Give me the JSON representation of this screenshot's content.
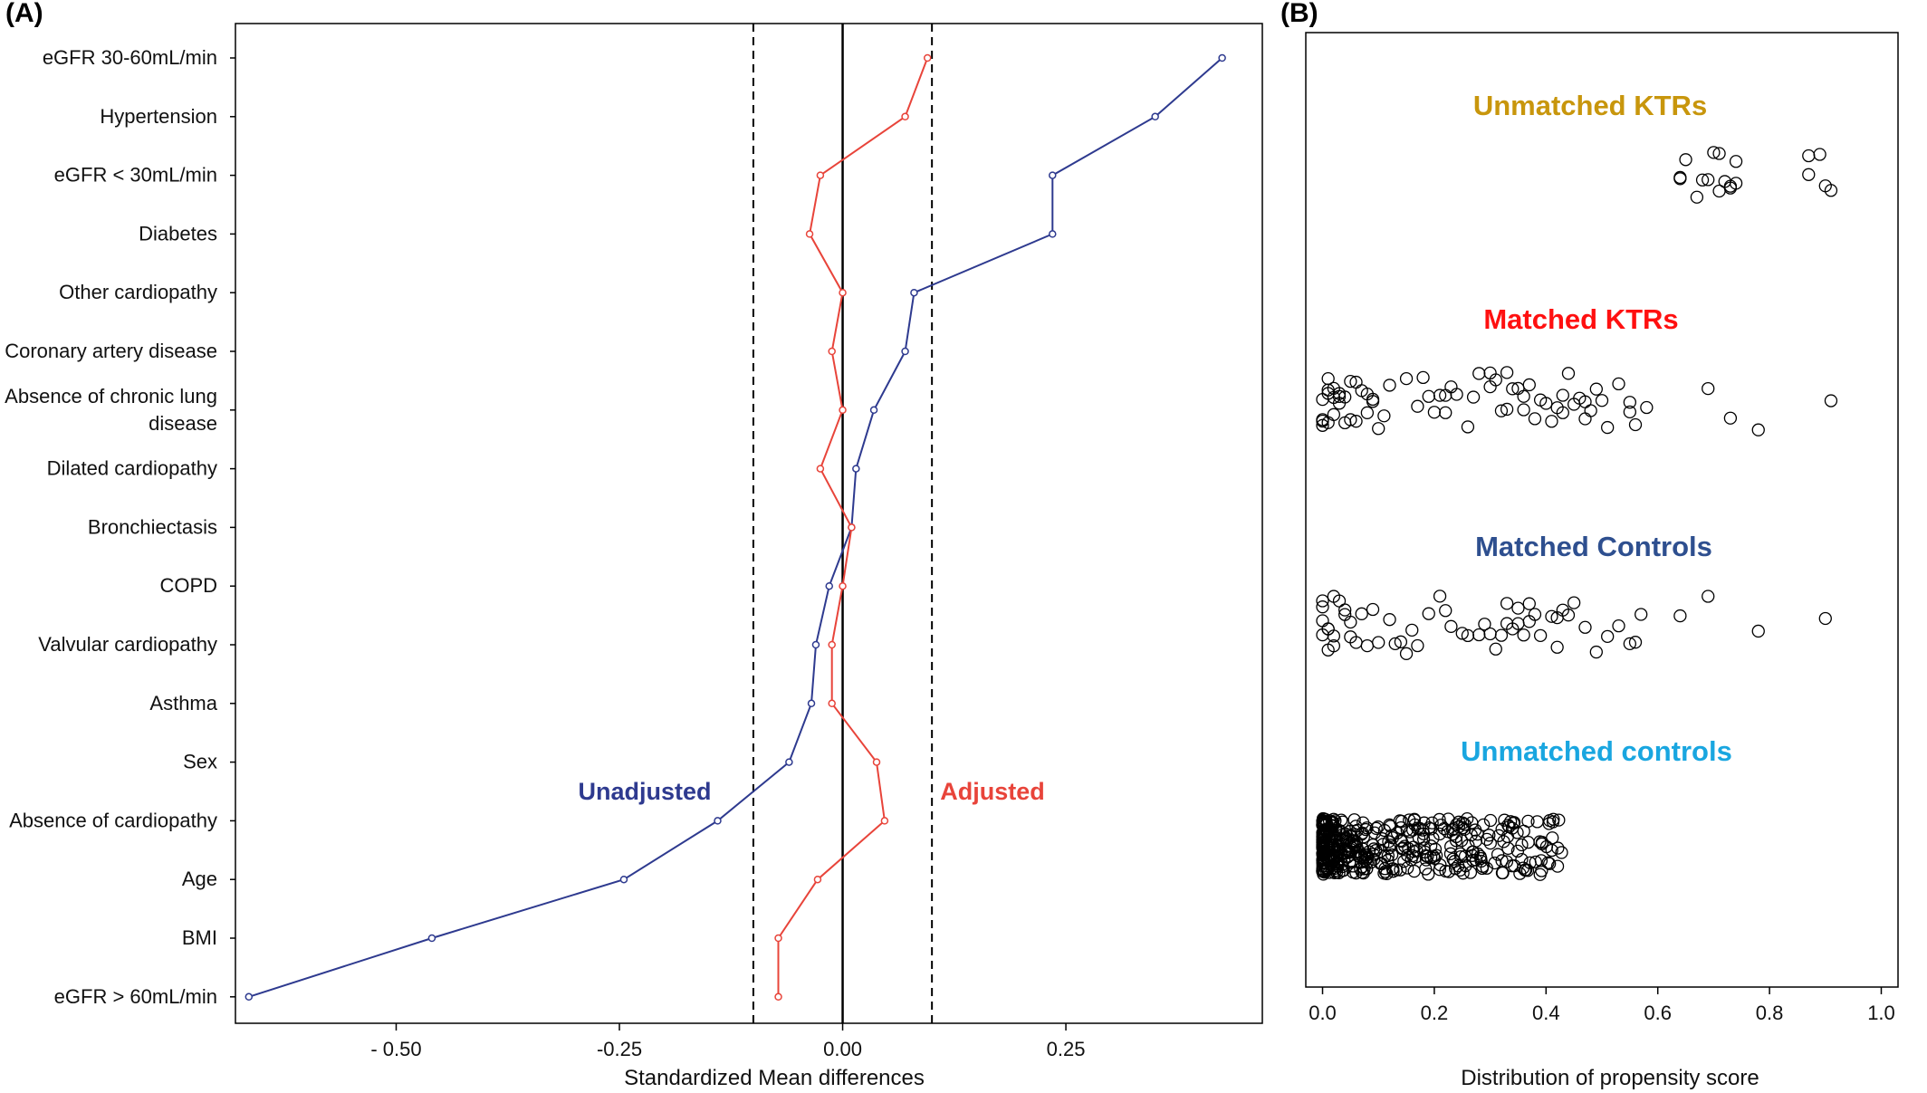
{
  "colors": {
    "unadjusted": "#2E3A8F",
    "adjusted": "#E8443A",
    "unmatched_ktrs": "#C8960C",
    "matched_ktrs": "#FF1010",
    "matched_controls": "#2E4F8F",
    "unmatched_controls": "#19A6E0"
  },
  "chart_data": [
    {
      "type": "line",
      "panel_label": "(A)",
      "xlabel": "Standardized Mean differences",
      "xlim": [
        -0.68,
        0.47
      ],
      "xticks": [
        -0.5,
        -0.25,
        0.0,
        0.25
      ],
      "xtick_labels": [
        "- 0.50",
        "-0.25",
        "0.00",
        "0.25"
      ],
      "reference_lines": [
        {
          "x": 0.0,
          "style": "solid"
        },
        {
          "x": -0.1,
          "style": "dashed"
        },
        {
          "x": 0.1,
          "style": "dashed"
        }
      ],
      "categories": [
        [
          "eGFR 30-60mL/min"
        ],
        [
          "Hypertension"
        ],
        [
          "eGFR < 30mL/min"
        ],
        [
          "Diabetes"
        ],
        [
          "Other cardiopathy"
        ],
        [
          "Coronary artery disease"
        ],
        [
          "Absence of chronic lung",
          "disease"
        ],
        [
          "Dilated cardiopathy"
        ],
        [
          "Bronchiectasis"
        ],
        [
          "COPD"
        ],
        [
          "Valvular cardiopathy"
        ],
        [
          "Asthma"
        ],
        [
          "Sex"
        ],
        [
          "Absence of cardiopathy"
        ],
        [
          "Age"
        ],
        [
          "BMI"
        ],
        [
          "eGFR > 60mL/min"
        ]
      ],
      "series": [
        {
          "name": "Unadjusted",
          "color_key": "unadjusted",
          "values": [
            0.425,
            0.35,
            0.235,
            0.235,
            0.08,
            0.07,
            0.035,
            0.015,
            0.01,
            -0.015,
            -0.03,
            -0.035,
            -0.06,
            -0.14,
            -0.245,
            -0.46,
            -0.665
          ]
        },
        {
          "name": "Adjusted",
          "color_key": "adjusted",
          "values": [
            0.095,
            0.07,
            -0.025,
            -0.037,
            0.0,
            -0.012,
            0.0,
            -0.025,
            0.01,
            0.0,
            -0.012,
            -0.012,
            0.038,
            0.047,
            -0.028,
            -0.072,
            -0.072
          ]
        }
      ]
    },
    {
      "type": "scatter",
      "panel_label": "(B)",
      "xlabel": "Distribution of propensity score",
      "xlim": [
        -0.03,
        1.03
      ],
      "xticks": [
        0.0,
        0.2,
        0.4,
        0.6,
        0.8,
        1.0
      ],
      "xtick_labels": [
        "0.0",
        "0.2",
        "0.4",
        "0.6",
        "0.8",
        "1.0"
      ],
      "groups": [
        {
          "name": "Unmatched KTRs",
          "color_key": "unmatched_ktrs",
          "x": [
            0.64,
            0.65,
            0.64,
            0.67,
            0.68,
            0.69,
            0.7,
            0.71,
            0.72,
            0.73,
            0.74,
            0.74,
            0.73,
            0.71,
            0.87,
            0.87,
            0.89,
            0.9,
            0.91
          ]
        },
        {
          "name": "Matched KTRs",
          "color_key": "matched_ktrs",
          "x": [
            0.0,
            0.01,
            0.0,
            0.02,
            0.01,
            0.02,
            0.03,
            0.0,
            0.01,
            0.03,
            0.04,
            0.05,
            0.06,
            0.05,
            0.07,
            0.08,
            0.09,
            0.1,
            0.09,
            0.11,
            0.12,
            0.02,
            0.04,
            0.0,
            0.01,
            0.03,
            0.06,
            0.08,
            0.15,
            0.17,
            0.18,
            0.2,
            0.21,
            0.22,
            0.23,
            0.24,
            0.22,
            0.19,
            0.26,
            0.27,
            0.28,
            0.3,
            0.31,
            0.32,
            0.33,
            0.34,
            0.35,
            0.36,
            0.37,
            0.38,
            0.39,
            0.4,
            0.41,
            0.42,
            0.43,
            0.44,
            0.45,
            0.46,
            0.47,
            0.48,
            0.49,
            0.5,
            0.51,
            0.53,
            0.55,
            0.56,
            0.58,
            0.3,
            0.33,
            0.36,
            0.43,
            0.47,
            0.55,
            0.69,
            0.73,
            0.78,
            0.91
          ]
        },
        {
          "name": "Matched Controls",
          "color_key": "matched_controls",
          "x": [
            0.0,
            0.01,
            0.0,
            0.02,
            0.01,
            0.02,
            0.0,
            0.01,
            0.03,
            0.04,
            0.05,
            0.06,
            0.07,
            0.08,
            0.09,
            0.1,
            0.12,
            0.0,
            0.02,
            0.04,
            0.05,
            0.13,
            0.14,
            0.15,
            0.16,
            0.17,
            0.19,
            0.21,
            0.22,
            0.23,
            0.25,
            0.26,
            0.28,
            0.29,
            0.3,
            0.31,
            0.32,
            0.33,
            0.34,
            0.35,
            0.36,
            0.37,
            0.38,
            0.39,
            0.41,
            0.42,
            0.43,
            0.44,
            0.45,
            0.47,
            0.49,
            0.51,
            0.53,
            0.55,
            0.56,
            0.57,
            0.33,
            0.35,
            0.37,
            0.42,
            0.64,
            0.69,
            0.78,
            0.9
          ]
        },
        {
          "name": "Unmatched controls",
          "color_key": "unmatched_controls",
          "x_range": [
            0.0,
            0.43
          ],
          "approx_count": 420
        }
      ]
    }
  ]
}
